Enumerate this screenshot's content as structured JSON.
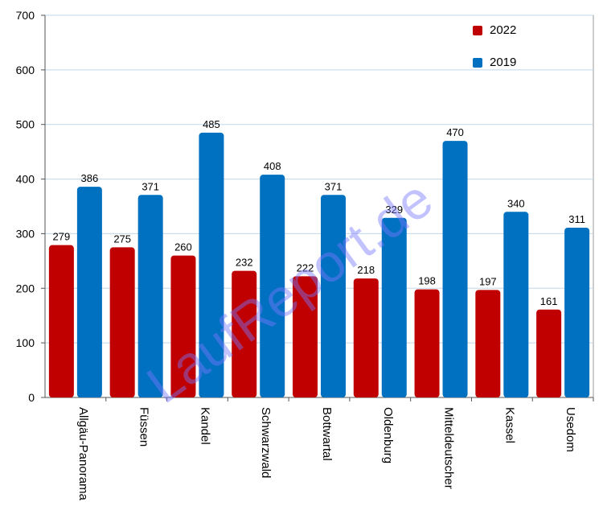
{
  "colors": {
    "series_2022": "#c00000",
    "series_2019": "#0070c0",
    "grid": "#c0d8ea",
    "axis": "#555555"
  },
  "chart_data": {
    "type": "bar",
    "categories": [
      "Allgäu-Panorama",
      "Füssen",
      "Kandel",
      "Schwarzwald",
      "Bottwartal",
      "Oldenburg",
      "Mitteldeutscher",
      "Kassel",
      "Usedom"
    ],
    "series": [
      {
        "name": "2022",
        "values": [
          279,
          275,
          260,
          232,
          222,
          218,
          198,
          197,
          161
        ]
      },
      {
        "name": "2019",
        "values": [
          386,
          371,
          485,
          408,
          371,
          329,
          470,
          340,
          311
        ]
      }
    ],
    "ylim": [
      0,
      700
    ],
    "yticks": [
      0,
      100,
      200,
      300,
      400,
      500,
      600,
      700
    ],
    "grid": true,
    "legend_position": "top-right",
    "watermark": "LaufReport.de"
  }
}
